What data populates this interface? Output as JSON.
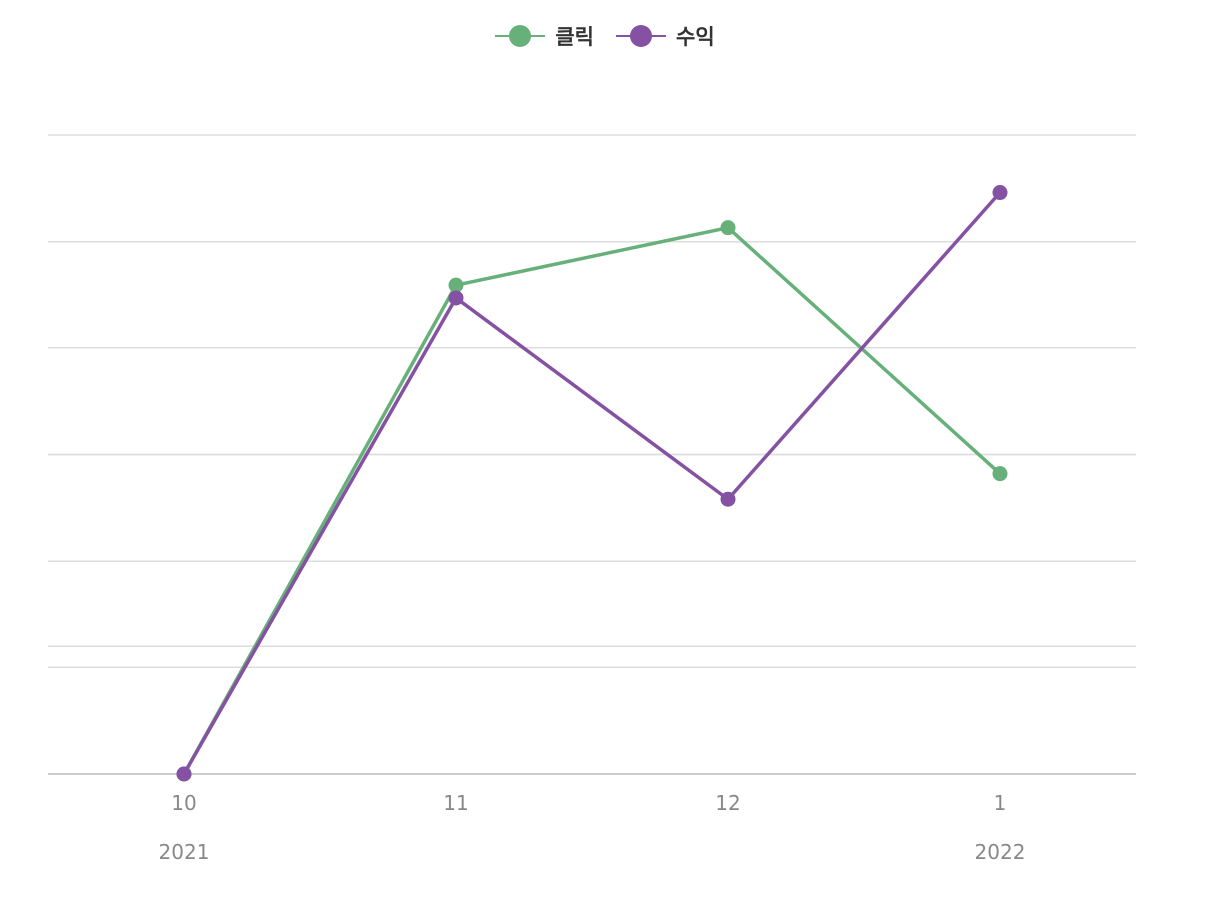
{
  "chart_data": {
    "type": "line",
    "categories": [
      "10",
      "11",
      "12",
      "1"
    ],
    "year_labels": [
      "2021",
      "",
      "",
      "2022"
    ],
    "series": [
      {
        "name": "클릭",
        "color": "#67b07a",
        "values": [
          0,
          0.765,
          0.855,
          0.47
        ]
      },
      {
        "name": "수익",
        "color": "#8551a3",
        "values": [
          0,
          0.745,
          0.43,
          0.91
        ]
      }
    ],
    "ylim": [
      0,
      1
    ],
    "grid": true,
    "legend": "top-center",
    "gridline_values_clicks": [
      1.0,
      0.5,
      0.333,
      0.167
    ],
    "gridline_values_revenue": [
      0.833,
      0.667,
      0.5,
      0.333,
      0.167,
      0.2
    ]
  }
}
